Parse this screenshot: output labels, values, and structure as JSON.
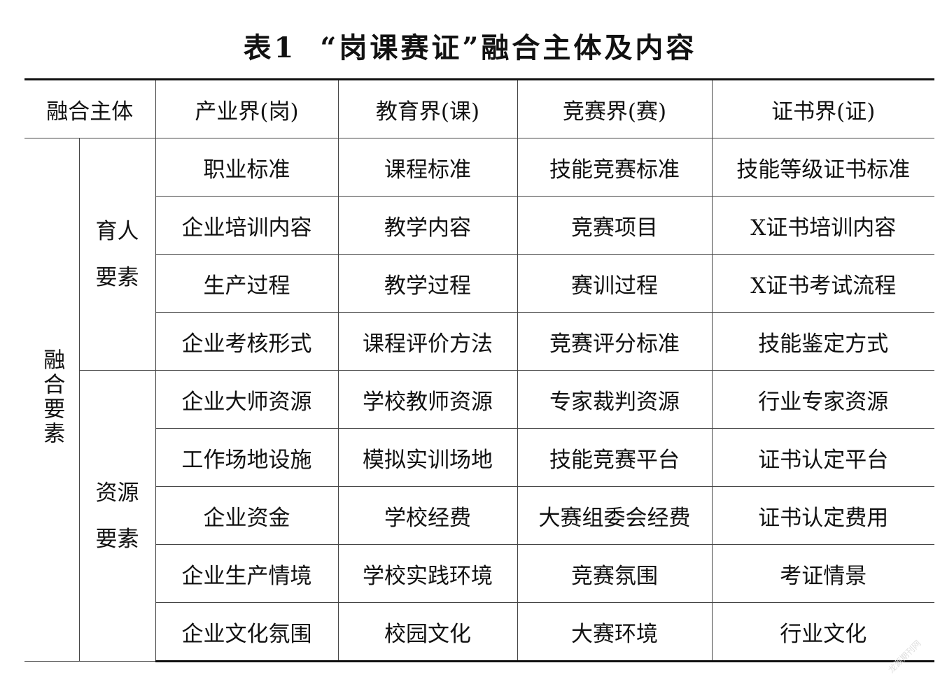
{
  "title": {
    "label": "表1",
    "text": "“岗课赛证”融合主体及内容"
  },
  "header": {
    "subject": "融合主体",
    "columns": [
      "产业界(岗)",
      "教育界(课)",
      "竞赛界(赛)",
      "证书界(证)"
    ]
  },
  "elements_label": "融合要素",
  "groups": [
    {
      "line1": "育人",
      "line2": "要素"
    },
    {
      "line1": "资源",
      "line2": "要素"
    }
  ],
  "rows": [
    [
      "职业标准",
      "课程标准",
      "技能竞赛标准",
      "技能等级证书标准"
    ],
    [
      "企业培训内容",
      "教学内容",
      "竞赛项目",
      "X证书培训内容"
    ],
    [
      "生产过程",
      "教学过程",
      "赛训过程",
      "X证书考试流程"
    ],
    [
      "企业考核形式",
      "课程评价方法",
      "竞赛评分标准",
      "技能鉴定方式"
    ],
    [
      "企业大师资源",
      "学校教师资源",
      "专家裁判资源",
      "行业专家资源"
    ],
    [
      "工作场地设施",
      "模拟实训场地",
      "技能竞赛平台",
      "证书认定平台"
    ],
    [
      "企业资金",
      "学校经费",
      "大赛组委会经费",
      "证书认定费用"
    ],
    [
      "企业生产情境",
      "学校实践环境",
      "竞赛氛围",
      "考证情景"
    ],
    [
      "企业文化氛围",
      "校园文化",
      "大赛环境",
      "行业文化"
    ]
  ],
  "watermark": "龙源期刊网"
}
